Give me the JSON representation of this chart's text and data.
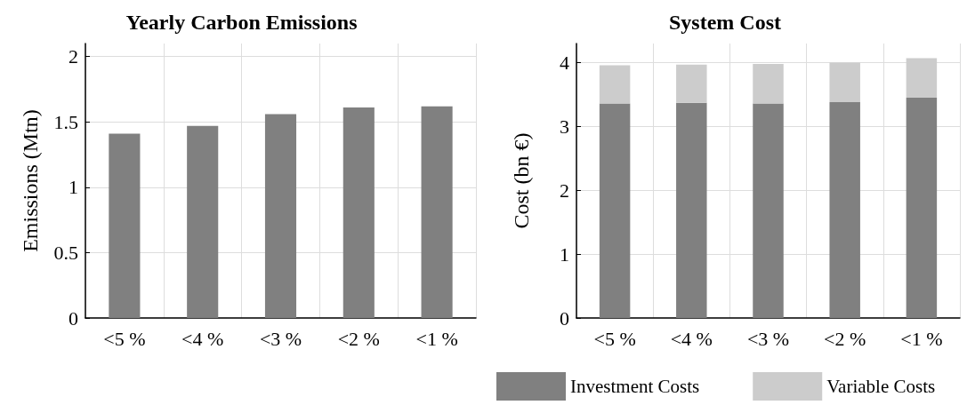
{
  "chart_data": [
    {
      "type": "bar",
      "title": "Yearly Carbon Emissions",
      "ylabel": "Emissions (Mtn)",
      "categories": [
        "<5 %",
        "<4 %",
        "<3 %",
        "<2 %",
        "<1 %"
      ],
      "values": [
        1.41,
        1.47,
        1.56,
        1.61,
        1.62
      ],
      "color": "#808080",
      "ylim": [
        0,
        2.1
      ],
      "yticks": [
        0,
        0.5,
        1,
        1.5,
        2
      ],
      "grid": true
    },
    {
      "type": "bar",
      "title": "System Cost",
      "ylabel": "Cost (bn €)",
      "categories": [
        "<5 %",
        "<4 %",
        "<3 %",
        "<2 %",
        "<1 %"
      ],
      "stacked": true,
      "series": [
        {
          "name": "Investment Costs",
          "color": "#808080",
          "values": [
            3.36,
            3.37,
            3.36,
            3.38,
            3.45
          ]
        },
        {
          "name": "Variable Costs",
          "color": "#cccccc",
          "values": [
            0.6,
            0.6,
            0.62,
            0.62,
            0.62
          ]
        }
      ],
      "ylim": [
        0,
        4.3
      ],
      "yticks": [
        0,
        1,
        2,
        3,
        4
      ],
      "grid": true,
      "legend": "bottom"
    }
  ]
}
